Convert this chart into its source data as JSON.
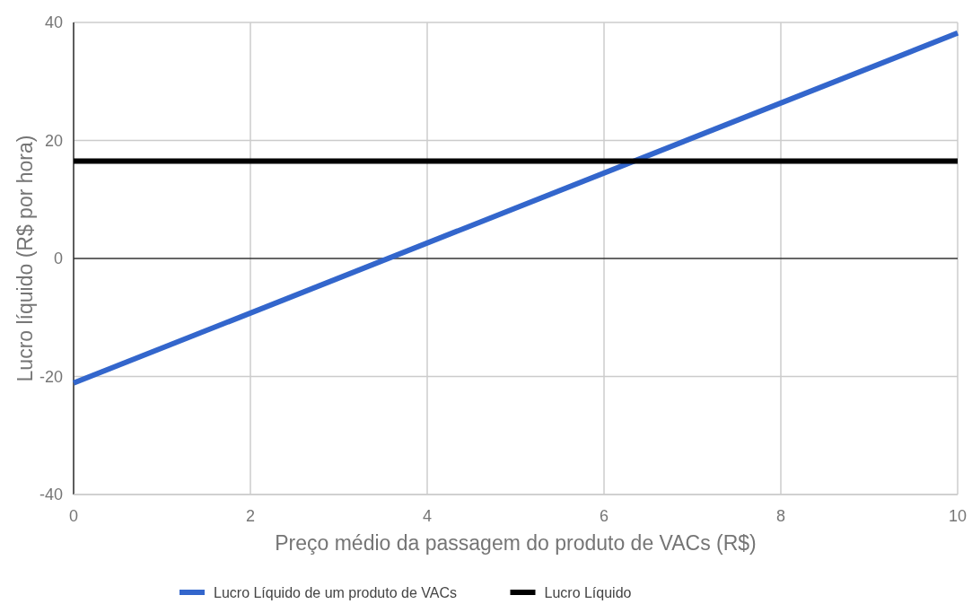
{
  "chart_data": {
    "type": "line",
    "xlabel": "Preço médio da passagem do produto de VACs (R$)",
    "ylabel": "Lucro líquido (R$ por hora)",
    "x": [
      0,
      10
    ],
    "series": [
      {
        "name": "Lucro Líquido de um produto de VACs",
        "color": "#3366cc",
        "values": [
          -21.1,
          38.2
        ]
      },
      {
        "name": "Lucro Líquido",
        "color": "#000000",
        "values": [
          16.5,
          16.5
        ]
      }
    ],
    "xlim": [
      0,
      10
    ],
    "xticks": [
      0,
      2,
      4,
      6,
      8,
      10
    ],
    "ylim": [
      -40,
      40
    ],
    "yticks": [
      -40,
      -20,
      0,
      20,
      40
    ],
    "grid": true,
    "legend": "bottom",
    "marker": "none",
    "line_style": "solid"
  }
}
